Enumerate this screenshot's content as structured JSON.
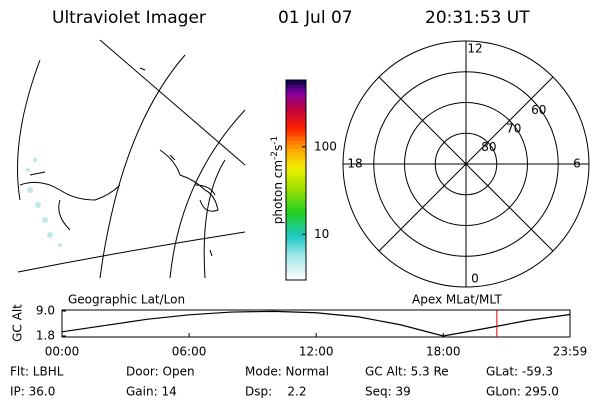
{
  "header": {
    "title": "Ultraviolet Imager",
    "date": "01 Jul 07",
    "time": "20:31:53 UT"
  },
  "map": {
    "label": "Geographic Lat/Lon"
  },
  "colorbar": {
    "label_parts": [
      "photon cm",
      "-2",
      "s",
      "-1"
    ],
    "log_scale": true,
    "lim": [
      3,
      580
    ],
    "ticks": [
      10,
      100
    ]
  },
  "polar": {
    "label": "Apex MLat/MLT",
    "mlt_ticks": [
      12,
      18,
      0,
      6
    ],
    "lat_lim": [
      50,
      90
    ],
    "lat_ticks": [
      60,
      70,
      80
    ]
  },
  "chart_data": {
    "type": "line",
    "ylabel": "GC Alt",
    "x": [
      0,
      2,
      4,
      6,
      8,
      10,
      12,
      14,
      16,
      18,
      20,
      22,
      23.983
    ],
    "series": [
      {
        "color": "#000000",
        "values": [
          3.0,
          4.8,
          6.6,
          7.9,
          8.7,
          8.9,
          8.5,
          7.3,
          5.0,
          1.8,
          4.0,
          6.3,
          8.0
        ]
      }
    ],
    "current_time": 20.531,
    "current_color": "#dd0000",
    "xlim": [
      0,
      23.983
    ],
    "xticks": [
      {
        "value": 0,
        "label": "00:00"
      },
      {
        "value": 6,
        "label": "06:00"
      },
      {
        "value": 12,
        "label": "12:00"
      },
      {
        "value": 18,
        "label": "18:00"
      },
      {
        "value": 23.983,
        "label": "23:59"
      }
    ],
    "ylim": [
      1.8,
      9.0
    ],
    "yticks": [
      {
        "value": 9.0,
        "label": "9.0"
      },
      {
        "value": 1.8,
        "label": "1.8"
      }
    ]
  },
  "footer": {
    "rows": [
      [
        "Flt: LBHL",
        "Door: Open",
        "Mode: Normal",
        "GC Alt: 5.3 Re",
        "GLat: -59.3"
      ],
      [
        "IP: 36.0",
        "Gain: 14",
        "Dsp:    2.2",
        "Seq: 39",
        "GLon: 295.0"
      ]
    ]
  }
}
